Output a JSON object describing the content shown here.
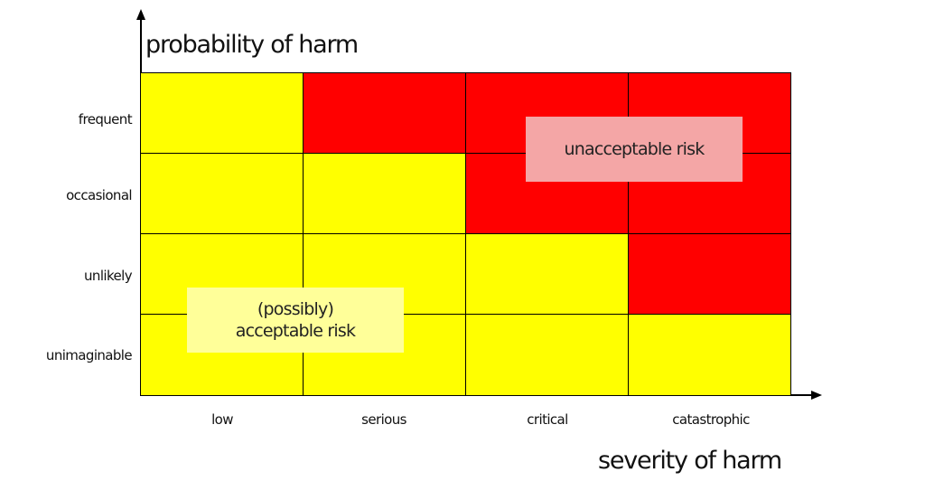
{
  "titles": {
    "y_axis": "probability of harm",
    "x_axis": "severity of harm"
  },
  "rows": [
    "frequent",
    "occasional",
    "unlikely",
    "unimaginable"
  ],
  "columns": [
    "low",
    "serious",
    "critical",
    "catastrophic"
  ],
  "matrix": [
    [
      "yellow",
      "red",
      "red",
      "red"
    ],
    [
      "yellow",
      "yellow",
      "red",
      "red"
    ],
    [
      "yellow",
      "yellow",
      "yellow",
      "red"
    ],
    [
      "yellow",
      "yellow",
      "yellow",
      "yellow"
    ]
  ],
  "colors": {
    "yellow": "#ffff00",
    "red": "#ff0000",
    "unacceptable_box": "#f4a6a6",
    "acceptable_box": "#ffff99"
  },
  "annotations": {
    "unacceptable": "unacceptable risk",
    "acceptable_line1": "(possibly)",
    "acceptable_line2": "acceptable risk"
  }
}
